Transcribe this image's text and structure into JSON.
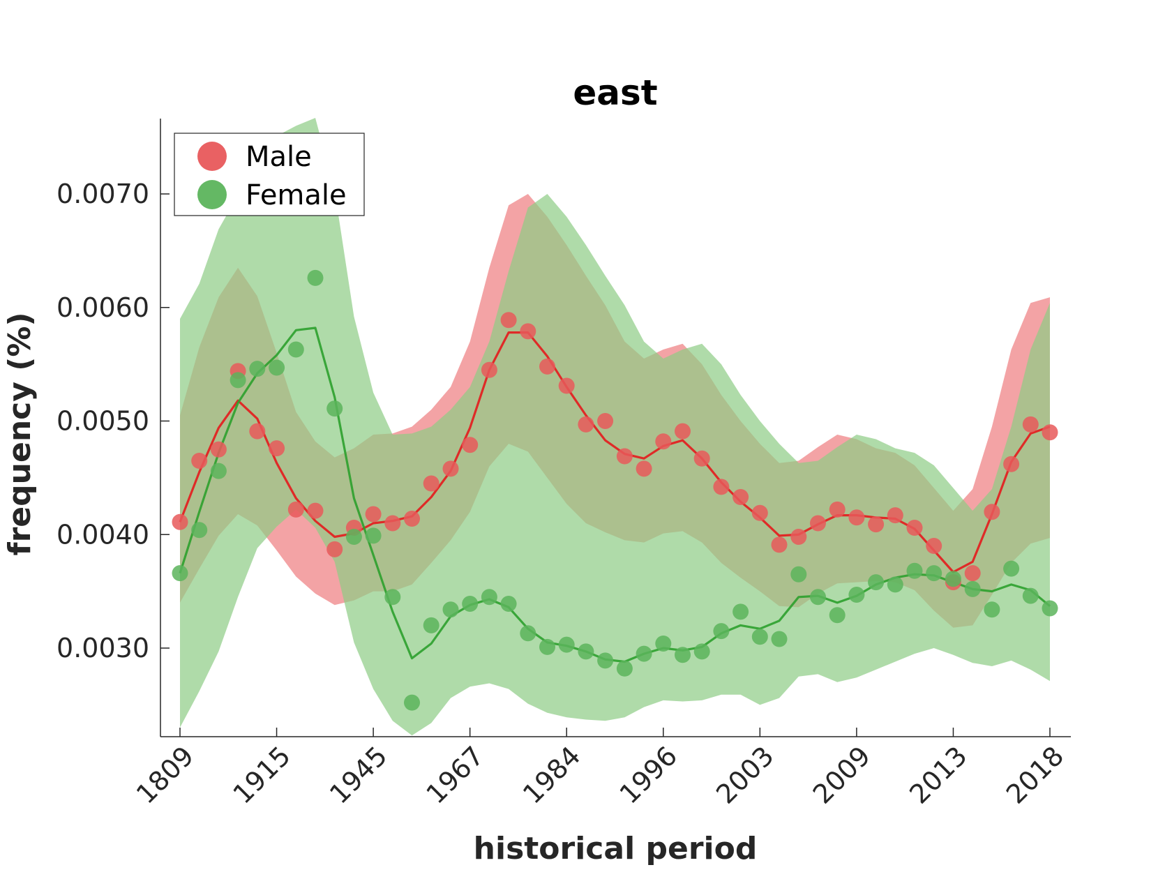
{
  "chart_data": {
    "type": "line",
    "title": "east",
    "xlabel": "historical period",
    "ylabel": "frequency (%)",
    "x_tick_labels": [
      "1809",
      "1915",
      "1945",
      "1967",
      "1984",
      "1996",
      "2003",
      "2009",
      "2013",
      "2018"
    ],
    "y_ticks": [
      0.003,
      0.004,
      0.005,
      0.006,
      0.007
    ],
    "y_tick_labels": [
      "0.0030",
      "0.0040",
      "0.0050",
      "0.0060",
      "0.0070"
    ],
    "ylim": [
      0.00223,
      0.00767
    ],
    "n_points": 46,
    "grid": false,
    "legend_position": "top-left",
    "colors": {
      "Male": "#e41a1c",
      "Female": "#2ca02c",
      "Male_marker": "#e8595b",
      "Female_marker": "#5cb45c",
      "Male_band": "#ee7f82",
      "Female_band": "#8dcc85"
    },
    "series": [
      {
        "name": "Male",
        "scatter": [
          0.00411,
          0.00465,
          0.00475,
          0.00544,
          0.00491,
          0.00476,
          0.00422,
          0.00421,
          0.00387,
          0.00406,
          0.00418,
          0.0041,
          0.00414,
          0.00445,
          0.00458,
          0.00479,
          0.00545,
          0.00589,
          0.00579,
          0.00548,
          0.00531,
          0.00497,
          0.005,
          0.00469,
          0.00458,
          0.00482,
          0.00491,
          0.00467,
          0.00442,
          0.00433,
          0.00419,
          0.00391,
          0.00398,
          0.0041,
          0.00422,
          0.00415,
          0.00409,
          0.00417,
          0.00406,
          0.0039,
          0.00358,
          0.00366,
          0.0042,
          0.00462,
          0.00497,
          0.0049
        ],
        "line": [
          0.00411,
          0.00455,
          0.00494,
          0.00518,
          0.00502,
          0.00463,
          0.00432,
          0.00412,
          0.00398,
          0.00401,
          0.0041,
          0.00412,
          0.00416,
          0.00433,
          0.00456,
          0.00494,
          0.00545,
          0.00578,
          0.00578,
          0.00557,
          0.0053,
          0.00505,
          0.00483,
          0.00471,
          0.00467,
          0.00478,
          0.00483,
          0.00467,
          0.00446,
          0.00429,
          0.00415,
          0.00399,
          0.004,
          0.00409,
          0.00417,
          0.00417,
          0.00415,
          0.00414,
          0.00405,
          0.00386,
          0.00367,
          0.00376,
          0.00418,
          0.00464,
          0.00489,
          0.00495
        ],
        "band_upper": [
          0.00505,
          0.00565,
          0.00609,
          0.00635,
          0.0061,
          0.0056,
          0.00508,
          0.00482,
          0.00468,
          0.00476,
          0.00488,
          0.00489,
          0.00495,
          0.0051,
          0.0053,
          0.0057,
          0.00635,
          0.0069,
          0.007,
          0.0068,
          0.00655,
          0.00628,
          0.00602,
          0.0057,
          0.00555,
          0.00563,
          0.00568,
          0.0055,
          0.00523,
          0.005,
          0.0048,
          0.00463,
          0.00465,
          0.00477,
          0.00488,
          0.00484,
          0.00476,
          0.00472,
          0.00461,
          0.00441,
          0.00421,
          0.0044,
          0.00495,
          0.00563,
          0.00604,
          0.00609
        ],
        "band_lower": [
          0.0034,
          0.0037,
          0.00399,
          0.00418,
          0.00408,
          0.00386,
          0.00363,
          0.00348,
          0.00338,
          0.00342,
          0.0035,
          0.0035,
          0.00356,
          0.00375,
          0.00395,
          0.0042,
          0.0046,
          0.0048,
          0.00473,
          0.0045,
          0.00427,
          0.0041,
          0.00402,
          0.00395,
          0.00393,
          0.00401,
          0.00403,
          0.00393,
          0.00375,
          0.00362,
          0.0035,
          0.00337,
          0.00336,
          0.00348,
          0.00357,
          0.00358,
          0.00359,
          0.00358,
          0.00351,
          0.00333,
          0.00318,
          0.0032,
          0.00347,
          0.00375,
          0.00392,
          0.00397
        ]
      },
      {
        "name": "Female",
        "scatter": [
          0.00366,
          0.00404,
          0.00456,
          0.00536,
          0.00546,
          0.00547,
          0.00563,
          0.00626,
          0.00511,
          0.00398,
          0.00399,
          0.00345,
          0.00252,
          0.0032,
          0.00334,
          0.00339,
          0.00345,
          0.00339,
          0.00313,
          0.00301,
          0.00303,
          0.00297,
          0.00289,
          0.00282,
          0.00295,
          0.00304,
          0.00294,
          0.00297,
          0.00315,
          0.00332,
          0.0031,
          0.00308,
          0.00365,
          0.00345,
          0.00329,
          0.00347,
          0.00358,
          0.00356,
          0.00368,
          0.00366,
          0.00361,
          0.00352,
          0.00334,
          0.0037,
          0.00346,
          0.00335
        ],
        "line": [
          0.00366,
          0.0042,
          0.00472,
          0.00516,
          0.00542,
          0.00558,
          0.0058,
          0.00582,
          0.00521,
          0.00432,
          0.00382,
          0.00332,
          0.00291,
          0.00304,
          0.00328,
          0.00338,
          0.00343,
          0.00336,
          0.00317,
          0.00305,
          0.00302,
          0.00297,
          0.0029,
          0.00288,
          0.00295,
          0.003,
          0.00298,
          0.00301,
          0.00313,
          0.0032,
          0.00317,
          0.00324,
          0.00345,
          0.00346,
          0.0034,
          0.00346,
          0.00356,
          0.00362,
          0.00365,
          0.00364,
          0.00358,
          0.00352,
          0.0035,
          0.00356,
          0.00351,
          0.00337
        ],
        "band_upper": [
          0.0059,
          0.00621,
          0.00669,
          0.00699,
          0.0072,
          0.00751,
          0.0076,
          0.00767,
          0.00703,
          0.00592,
          0.00525,
          0.00488,
          0.00489,
          0.00495,
          0.0051,
          0.0053,
          0.0057,
          0.00632,
          0.00688,
          0.007,
          0.0068,
          0.00655,
          0.00628,
          0.00602,
          0.0057,
          0.00555,
          0.00563,
          0.00568,
          0.0055,
          0.00523,
          0.005,
          0.0048,
          0.00463,
          0.00465,
          0.00477,
          0.00488,
          0.00484,
          0.00476,
          0.00472,
          0.00461,
          0.00441,
          0.00421,
          0.0044,
          0.00495,
          0.00563,
          0.00604
        ],
        "band_lower": [
          0.0023,
          0.00262,
          0.00297,
          0.00345,
          0.00388,
          0.00407,
          0.00422,
          0.00406,
          0.00376,
          0.00305,
          0.00264,
          0.00236,
          0.00223,
          0.00234,
          0.00256,
          0.00266,
          0.00269,
          0.00264,
          0.00251,
          0.00243,
          0.00239,
          0.00237,
          0.00236,
          0.00239,
          0.00248,
          0.00254,
          0.00253,
          0.00254,
          0.00259,
          0.00259,
          0.0025,
          0.00256,
          0.00275,
          0.00277,
          0.0027,
          0.00274,
          0.00281,
          0.00288,
          0.00295,
          0.003,
          0.00294,
          0.00287,
          0.00284,
          0.00289,
          0.00281,
          0.00271
        ]
      }
    ]
  }
}
